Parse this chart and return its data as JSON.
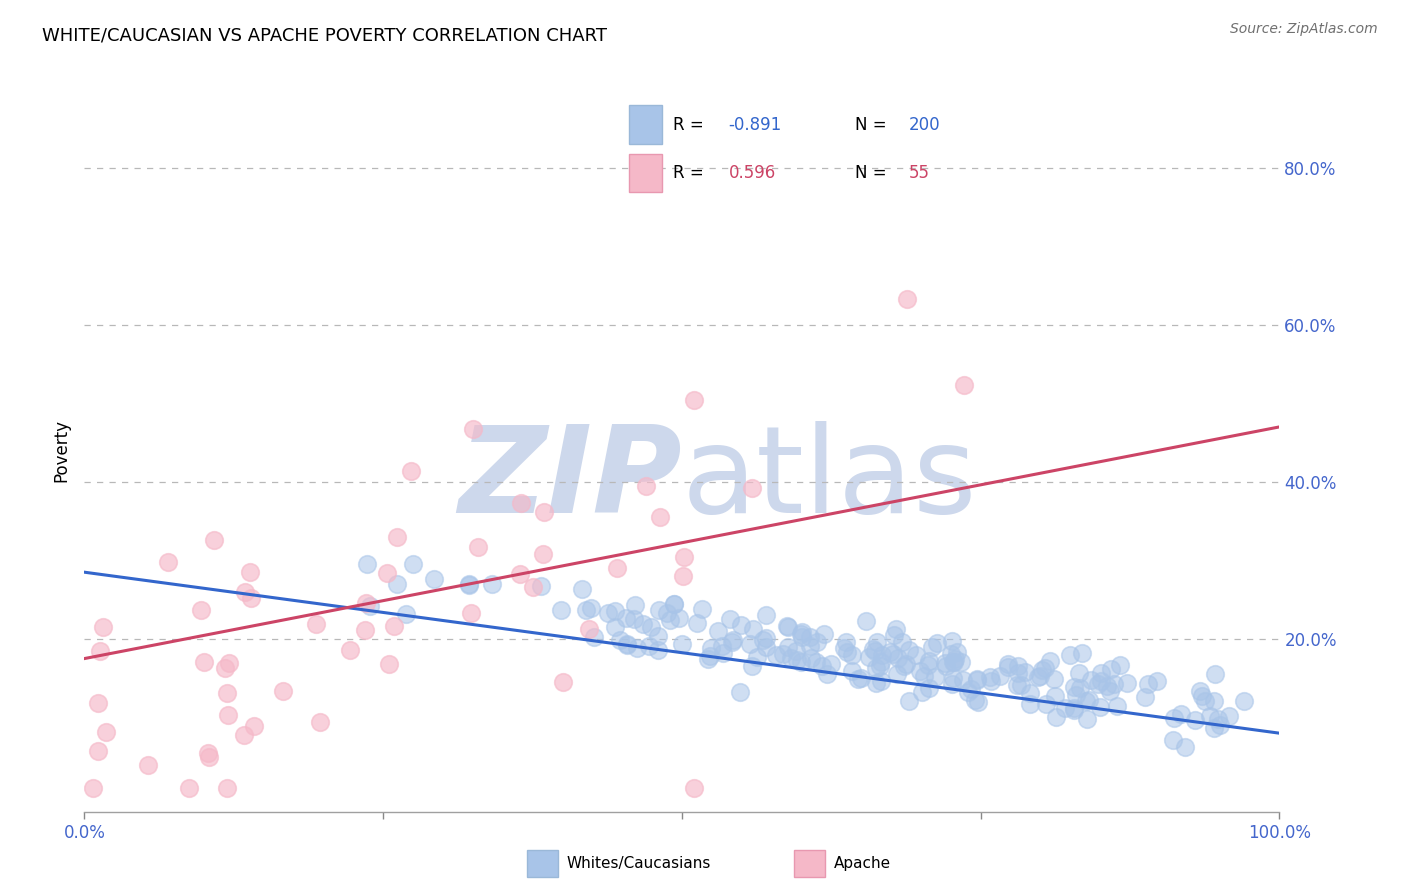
{
  "title": "WHITE/CAUCASIAN VS APACHE POVERTY CORRELATION CHART",
  "source": "Source: ZipAtlas.com",
  "ylabel": "Poverty",
  "xlim": [
    0.0,
    1.0
  ],
  "ylim": [
    -0.02,
    0.9
  ],
  "blue_R": "-0.891",
  "blue_N": "200",
  "pink_R": "0.596",
  "pink_N": "55",
  "blue_color": "#a8c4e8",
  "pink_color": "#f5b8c8",
  "blue_line_color": "#3366cc",
  "pink_line_color": "#cc4466",
  "tick_color": "#4466cc",
  "watermark_color": "#cdd8ec",
  "background_color": "#ffffff",
  "title_fontsize": 13,
  "seed_blue": 42,
  "seed_pink": 7,
  "blue_trend_start_y": 0.285,
  "blue_trend_end_y": 0.08,
  "pink_trend_start_y": 0.175,
  "pink_trend_end_y": 0.47
}
